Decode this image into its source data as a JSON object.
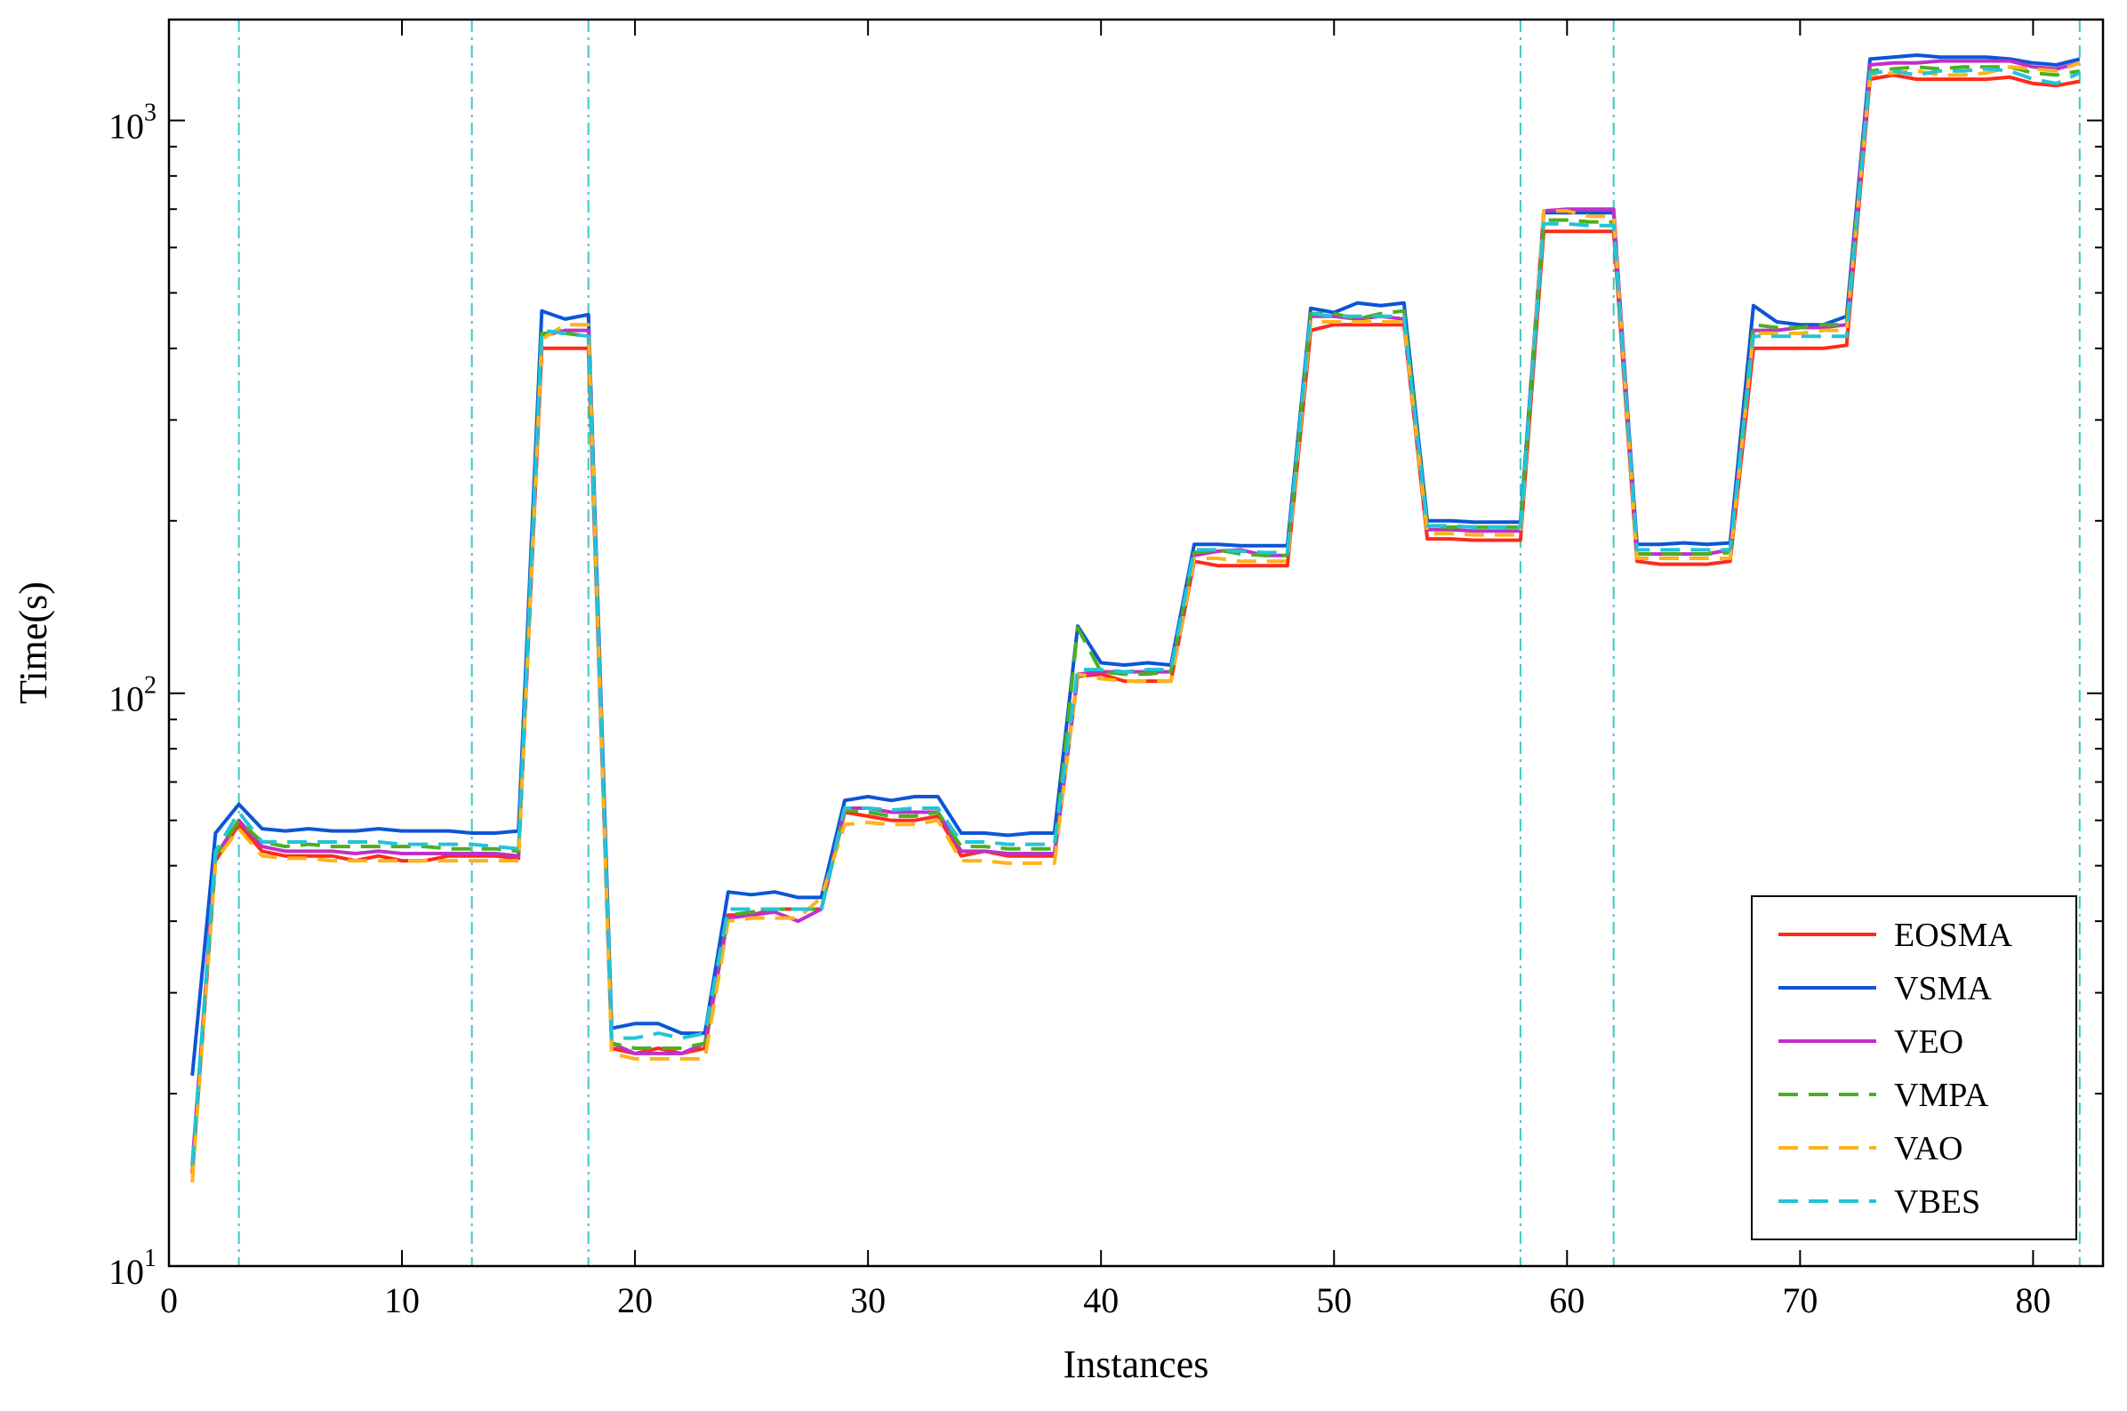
{
  "chart_data": {
    "type": "line",
    "xlabel": "Instances",
    "ylabel": "Time(s)",
    "xlim": [
      0,
      83
    ],
    "ylim": [
      10,
      1500
    ],
    "y_scale": "log",
    "grid": false,
    "legend_position": "bottom-right",
    "x_ticks": [
      0,
      10,
      20,
      30,
      40,
      50,
      60,
      70,
      80
    ],
    "x_tick_labels": [
      "0",
      "10",
      "20",
      "30",
      "40",
      "50",
      "60",
      "70",
      "80"
    ],
    "y_ticks": [
      10,
      100,
      1000
    ],
    "y_tick_labels": [
      {
        "base": "10",
        "exp": "1"
      },
      {
        "base": "10",
        "exp": "2"
      },
      {
        "base": "10",
        "exp": "3"
      }
    ],
    "vertical_reference_lines": [
      3,
      13,
      18,
      58,
      62,
      82
    ],
    "vertical_reference_color": "#3cc9c0",
    "series": [
      {
        "name": "EOSMA",
        "color": "#ff2a1a",
        "dash": "solid",
        "x": [
          1,
          2,
          3,
          4,
          5,
          6,
          7,
          8,
          9,
          10,
          11,
          12,
          13,
          14,
          15,
          16,
          17,
          18,
          19,
          20,
          21,
          22,
          23,
          24,
          25,
          26,
          27,
          28,
          29,
          30,
          31,
          32,
          33,
          34,
          35,
          36,
          37,
          38,
          39,
          40,
          41,
          42,
          43,
          44,
          45,
          46,
          47,
          48,
          49,
          50,
          51,
          52,
          53,
          54,
          55,
          56,
          57,
          58,
          59,
          60,
          61,
          62,
          63,
          64,
          65,
          66,
          67,
          68,
          69,
          70,
          71,
          72,
          73,
          74,
          75,
          76,
          77,
          78,
          79,
          80,
          81,
          82
        ],
        "values": [
          14.5,
          51,
          59,
          53,
          52,
          52,
          52,
          51,
          52,
          51,
          51,
          52,
          52,
          52,
          51.5,
          400,
          400,
          400,
          24,
          23.5,
          24,
          23.5,
          24,
          41,
          41,
          42,
          42,
          42,
          62,
          61,
          60,
          60,
          61,
          52,
          53,
          52,
          52,
          52,
          107,
          108,
          105,
          105,
          105,
          170,
          167,
          167,
          167,
          167,
          430,
          440,
          440,
          440,
          440,
          186,
          186,
          185,
          185,
          185,
          640,
          640,
          640,
          640,
          170,
          168,
          168,
          168,
          170,
          400,
          400,
          400,
          400,
          405,
          1180,
          1200,
          1180,
          1180,
          1180,
          1180,
          1190,
          1160,
          1150,
          1170
        ]
      },
      {
        "name": "VSMA",
        "color": "#0d55d6",
        "dash": "solid",
        "x": [
          1,
          2,
          3,
          4,
          5,
          6,
          7,
          8,
          9,
          10,
          11,
          12,
          13,
          14,
          15,
          16,
          17,
          18,
          19,
          20,
          21,
          22,
          23,
          24,
          25,
          26,
          27,
          28,
          29,
          30,
          31,
          32,
          33,
          34,
          35,
          36,
          37,
          38,
          39,
          40,
          41,
          42,
          43,
          44,
          45,
          46,
          47,
          48,
          49,
          50,
          51,
          52,
          53,
          54,
          55,
          56,
          57,
          58,
          59,
          60,
          61,
          62,
          63,
          64,
          65,
          66,
          67,
          68,
          69,
          70,
          71,
          72,
          73,
          74,
          75,
          76,
          77,
          78,
          79,
          80,
          81,
          82
        ],
        "values": [
          21.5,
          57,
          64,
          58,
          57.5,
          58,
          57.5,
          57.5,
          58,
          57.5,
          57.5,
          57.5,
          57,
          57,
          57.5,
          465,
          450,
          458,
          26,
          26.5,
          26.5,
          25.5,
          25.5,
          45,
          44.5,
          45,
          44,
          44,
          65,
          66,
          65,
          66,
          66,
          57,
          57,
          56.5,
          57,
          57,
          131,
          113,
          112,
          113,
          112,
          182,
          182,
          181,
          181,
          181,
          470,
          462,
          480,
          475,
          480,
          200,
          200,
          199,
          199,
          199,
          690,
          690,
          690,
          690,
          182,
          182,
          183,
          182,
          183,
          475,
          445,
          440,
          440,
          455,
          1280,
          1290,
          1300,
          1290,
          1290,
          1290,
          1280,
          1260,
          1250,
          1280
        ]
      },
      {
        "name": "VEO",
        "color": "#c030c8",
        "dash": "solid",
        "x": [
          1,
          2,
          3,
          4,
          5,
          6,
          7,
          8,
          9,
          10,
          11,
          12,
          13,
          14,
          15,
          16,
          17,
          18,
          19,
          20,
          21,
          22,
          23,
          24,
          25,
          26,
          27,
          28,
          29,
          30,
          31,
          32,
          33,
          34,
          35,
          36,
          37,
          38,
          39,
          40,
          41,
          42,
          43,
          44,
          45,
          46,
          47,
          48,
          49,
          50,
          51,
          52,
          53,
          54,
          55,
          56,
          57,
          58,
          59,
          60,
          61,
          62,
          63,
          64,
          65,
          66,
          67,
          68,
          69,
          70,
          71,
          72,
          73,
          74,
          75,
          76,
          77,
          78,
          79,
          80,
          81,
          82
        ],
        "values": [
          15,
          52,
          60,
          54,
          53,
          53,
          53,
          52.5,
          53,
          52.5,
          52.5,
          52.5,
          52.5,
          52.5,
          52,
          420,
          430,
          430,
          24.5,
          23.5,
          23.5,
          23.5,
          24.5,
          40.5,
          41,
          41.5,
          40,
          42,
          63,
          63,
          62,
          62,
          62,
          53,
          53,
          52.5,
          52.5,
          52.5,
          108,
          109,
          109,
          109,
          109,
          174,
          177,
          178,
          174,
          174,
          455,
          455,
          450,
          455,
          450,
          193,
          193,
          192,
          192,
          192,
          695,
          700,
          700,
          700,
          175,
          175,
          175,
          175,
          178,
          430,
          430,
          435,
          435,
          440,
          1250,
          1260,
          1260,
          1270,
          1270,
          1270,
          1270,
          1240,
          1230,
          1260
        ]
      },
      {
        "name": "VMPA",
        "color": "#4caf1f",
        "dash": "dashed",
        "x": [
          1,
          2,
          3,
          4,
          5,
          6,
          7,
          8,
          9,
          10,
          11,
          12,
          13,
          14,
          15,
          16,
          17,
          18,
          19,
          20,
          21,
          22,
          23,
          24,
          25,
          26,
          27,
          28,
          29,
          30,
          31,
          32,
          33,
          34,
          35,
          36,
          37,
          38,
          39,
          40,
          41,
          42,
          43,
          44,
          45,
          46,
          47,
          48,
          49,
          50,
          51,
          52,
          53,
          54,
          55,
          56,
          57,
          58,
          59,
          60,
          61,
          62,
          63,
          64,
          65,
          66,
          67,
          68,
          69,
          70,
          71,
          72,
          73,
          74,
          75,
          76,
          77,
          78,
          79,
          80,
          81,
          82
        ],
        "values": [
          15,
          52,
          60,
          55,
          54,
          54.5,
          54,
          54,
          54,
          54,
          54,
          53.5,
          53.5,
          53.5,
          53,
          425,
          425,
          420,
          24.5,
          24,
          24,
          24,
          24.5,
          41,
          41.5,
          42,
          42,
          42,
          62.5,
          62,
          61,
          61,
          62,
          54,
          54,
          53.5,
          53.5,
          53.5,
          130,
          109,
          108,
          108,
          109,
          176,
          178,
          175,
          174,
          174,
          460,
          460,
          450,
          460,
          465,
          195,
          195,
          195,
          195,
          195,
          670,
          670,
          665,
          665,
          175,
          175,
          175,
          175,
          176,
          440,
          435,
          435,
          440,
          440,
          1220,
          1230,
          1240,
          1230,
          1240,
          1240,
          1240,
          1210,
          1200,
          1220
        ]
      },
      {
        "name": "VAO",
        "color": "#ffb21a",
        "dash": "dashed",
        "x": [
          1,
          2,
          3,
          4,
          5,
          6,
          7,
          8,
          9,
          10,
          11,
          12,
          13,
          14,
          15,
          16,
          17,
          18,
          19,
          20,
          21,
          22,
          23,
          24,
          25,
          26,
          27,
          28,
          29,
          30,
          31,
          32,
          33,
          34,
          35,
          36,
          37,
          38,
          39,
          40,
          41,
          42,
          43,
          44,
          45,
          46,
          47,
          48,
          49,
          50,
          51,
          52,
          53,
          54,
          55,
          56,
          57,
          58,
          59,
          60,
          61,
          62,
          63,
          64,
          65,
          66,
          67,
          68,
          69,
          70,
          71,
          72,
          73,
          74,
          75,
          76,
          77,
          78,
          79,
          80,
          81,
          82
        ],
        "values": [
          14,
          51,
          58,
          52,
          51.5,
          51.5,
          51,
          51,
          51,
          51,
          51,
          51,
          51,
          51,
          51,
          415,
          440,
          440,
          23.5,
          23,
          23,
          23,
          23,
          40,
          40.5,
          40.5,
          40.5,
          44,
          59,
          59.5,
          59,
          59,
          60,
          51,
          51,
          50.5,
          50.5,
          50.5,
          108,
          106,
          105,
          105,
          105,
          172,
          172,
          170,
          170,
          170,
          445,
          445,
          445,
          445,
          445,
          190,
          190,
          189,
          189,
          189,
          695,
          695,
          680,
          680,
          172,
          172,
          172,
          172,
          172,
          425,
          425,
          425,
          430,
          430,
          1200,
          1210,
          1220,
          1200,
          1200,
          1210,
          1240,
          1230,
          1220,
          1260
        ]
      },
      {
        "name": "VBES",
        "color": "#22c4d6",
        "dash": "dashed",
        "x": [
          1,
          2,
          3,
          4,
          5,
          6,
          7,
          8,
          9,
          10,
          11,
          12,
          13,
          14,
          15,
          16,
          17,
          18,
          19,
          20,
          21,
          22,
          23,
          24,
          25,
          26,
          27,
          28,
          29,
          30,
          31,
          32,
          33,
          34,
          35,
          36,
          37,
          38,
          39,
          40,
          41,
          42,
          43,
          44,
          45,
          46,
          47,
          48,
          49,
          50,
          51,
          52,
          53,
          54,
          55,
          56,
          57,
          58,
          59,
          60,
          61,
          62,
          63,
          64,
          65,
          66,
          67,
          68,
          69,
          70,
          71,
          72,
          73,
          74,
          75,
          76,
          77,
          78,
          79,
          80,
          81,
          82
        ],
        "values": [
          15,
          53,
          62,
          55,
          55,
          55,
          55,
          55,
          55,
          54.5,
          54.5,
          54.5,
          54.5,
          54,
          53.5,
          430,
          425,
          420,
          25,
          25,
          25.5,
          25,
          25.5,
          42,
          42,
          42,
          42,
          42,
          63,
          63,
          62.5,
          63,
          63,
          55,
          55,
          54.5,
          54.5,
          54.5,
          110,
          110,
          109,
          110,
          110,
          178,
          178,
          177,
          176,
          176,
          460,
          455,
          455,
          455,
          455,
          196,
          196,
          195,
          195,
          195,
          660,
          660,
          655,
          655,
          178,
          178,
          178,
          178,
          178,
          420,
          420,
          420,
          420,
          420,
          1210,
          1220,
          1200,
          1220,
          1220,
          1230,
          1220,
          1180,
          1160,
          1210
        ]
      }
    ]
  }
}
